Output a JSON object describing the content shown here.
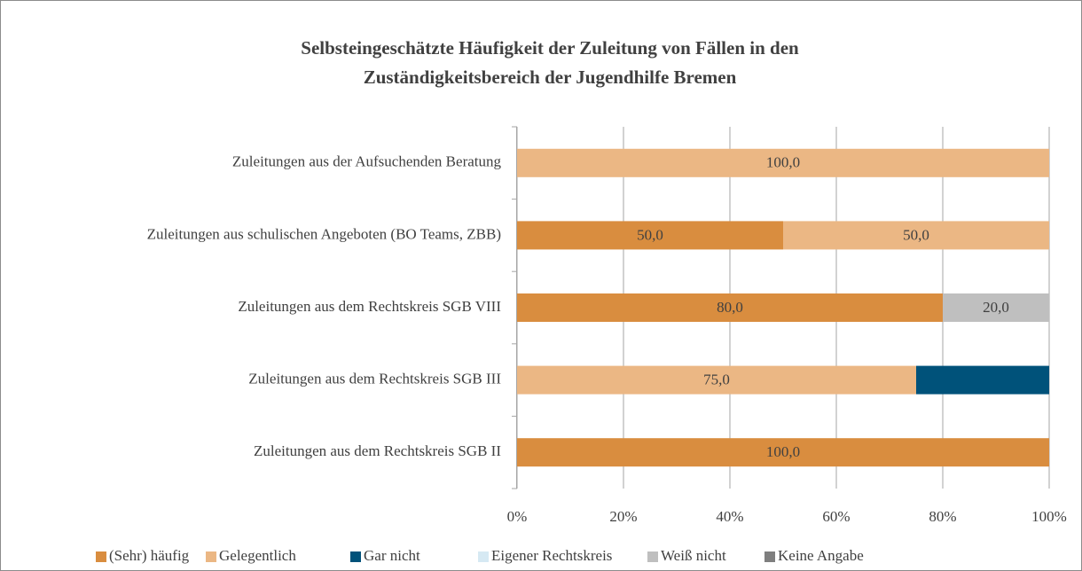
{
  "chart_data": {
    "type": "stacked-barh",
    "title": [
      "Selbsteingeschätzte Häufigkeit der Zuleitung von Fällen in den",
      "Zuständigkeitsbereich der Jugendhilfe Bremen"
    ],
    "categories": [
      "Zuleitungen aus der Aufsuchenden Beratung",
      "Zuleitungen aus schulischen Angeboten (BO Teams, ZBB)",
      "Zuleitungen aus dem Rechtskreis SGB VIII",
      "Zuleitungen aus dem Rechtskreis SGB III",
      "Zuleitungen aus dem Rechtskreis SGB II"
    ],
    "series": [
      {
        "name": "(Sehr) häufig",
        "color": "#d98d3f",
        "values": [
          null,
          50,
          80,
          null,
          100
        ],
        "value_labels": [
          null,
          "50,0",
          "80,0",
          null,
          "100,0"
        ]
      },
      {
        "name": "Gelegentlich",
        "color": "#ebb784",
        "values": [
          100,
          50,
          null,
          75,
          null
        ],
        "value_labels": [
          "100,0",
          "50,0",
          null,
          "75,0",
          null
        ]
      },
      {
        "name": "Gar nicht",
        "color": "#00527a",
        "values": [
          null,
          null,
          null,
          25,
          null
        ],
        "value_labels": [
          null,
          null,
          null,
          null,
          null
        ]
      },
      {
        "name": "Eigener Rechtskreis",
        "color": "#d6e9f3",
        "values": [
          null,
          null,
          null,
          null,
          null
        ],
        "value_labels": [
          null,
          null,
          null,
          null,
          null
        ]
      },
      {
        "name": "Weiß nicht",
        "color": "#bfbfbf",
        "values": [
          null,
          null,
          20,
          null,
          null
        ],
        "value_labels": [
          null,
          null,
          "20,0",
          null,
          null
        ]
      },
      {
        "name": "Keine Angabe",
        "color": "#7f7f7f",
        "values": [
          null,
          null,
          null,
          null,
          null
        ],
        "value_labels": [
          null,
          null,
          null,
          null,
          null
        ]
      }
    ],
    "xlim": [
      0,
      100
    ],
    "xticks": [
      {
        "value": 0,
        "label": "0%"
      },
      {
        "value": 20,
        "label": "20%"
      },
      {
        "value": 40,
        "label": "40%"
      },
      {
        "value": 60,
        "label": "60%"
      },
      {
        "value": 80,
        "label": "80%"
      },
      {
        "value": 100,
        "label": "100%"
      }
    ],
    "grid": true,
    "legend": "bottom"
  }
}
